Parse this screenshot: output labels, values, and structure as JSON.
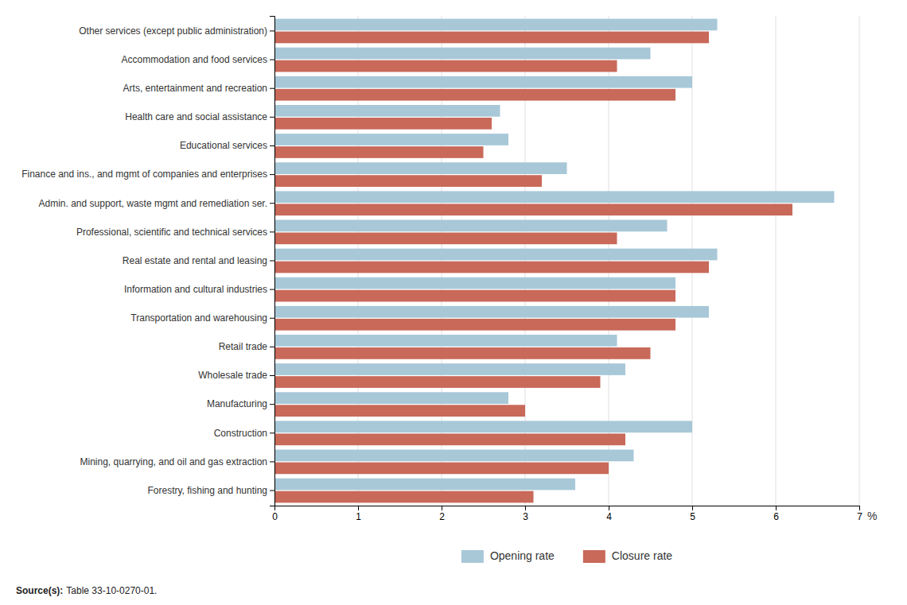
{
  "chart_data": {
    "type": "bar",
    "orientation": "horizontal",
    "categories": [
      "Forestry, fishing and hunting",
      "Mining, quarrying, and oil and gas extraction",
      "Construction",
      "Manufacturing",
      "Wholesale trade",
      "Retail trade",
      "Transportation and warehousing",
      "Information and cultural industries",
      "Real estate and rental and leasing",
      "Professional, scientific and technical services",
      "Admin. and support, waste mgmt and remediation ser.",
      "Finance and ins., and mgmt of companies and enterprises",
      "Educational services",
      "Health care and social assistance",
      "Arts, entertainment and recreation",
      "Accommodation and food services",
      "Other services (except public administration)"
    ],
    "series": [
      {
        "name": "Opening rate",
        "color": "#a8c8d8",
        "values": [
          3.6,
          4.3,
          5.0,
          2.8,
          4.2,
          4.1,
          5.2,
          4.8,
          5.3,
          4.7,
          6.7,
          3.5,
          2.8,
          2.7,
          5.0,
          4.5,
          5.3
        ]
      },
      {
        "name": "Closure rate",
        "color": "#c8695a",
        "values": [
          3.1,
          4.0,
          4.2,
          3.0,
          3.9,
          4.5,
          4.8,
          4.8,
          5.2,
          4.1,
          6.2,
          3.2,
          2.5,
          2.6,
          4.8,
          4.1,
          5.2
        ]
      }
    ],
    "xlabel": "%",
    "xlim": [
      0,
      7
    ],
    "xticks": [
      0,
      1,
      2,
      3,
      4,
      5,
      6,
      7
    ],
    "grid": true,
    "legend": "bottom",
    "annotations": [
      "Source(s):",
      "Table 33-10-0270-01."
    ]
  }
}
